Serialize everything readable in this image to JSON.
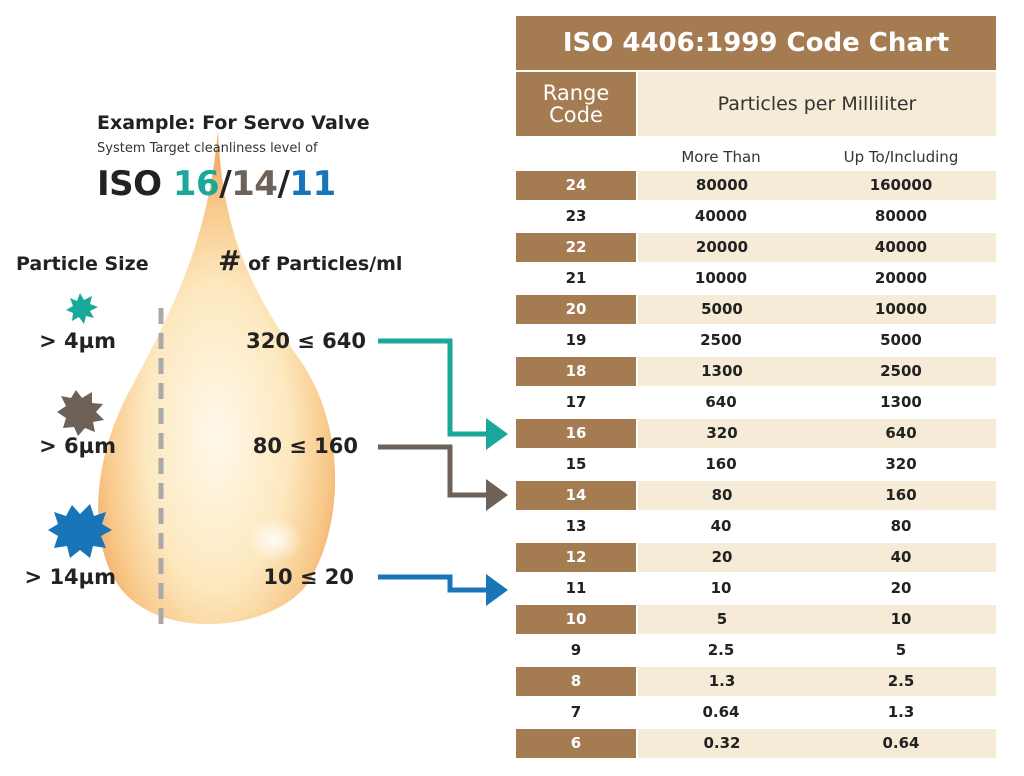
{
  "example": {
    "title": "Example: For Servo Valve",
    "subtitle": "System Target cleanliness level of",
    "iso_prefix": "ISO ",
    "code_a": "16",
    "sep1": "/",
    "code_b": "14",
    "sep2": "/",
    "code_c": "11"
  },
  "columns": {
    "particle_size": "Particle Size",
    "count_hash": "#",
    "count_rest": " of Particles/ml"
  },
  "rows": [
    {
      "size": "> 4µm",
      "count": "320 ≤ 640",
      "color": "#1aa89a",
      "target_code": "16"
    },
    {
      "size": "> 6µm",
      "count": "80 ≤ 160",
      "color": "#6e6258",
      "target_code": "14"
    },
    {
      "size": "> 14µm",
      "count": "10 ≤ 20",
      "color": "#1a74b8",
      "target_code": "11"
    }
  ],
  "colors": {
    "teal": "#1aa89a",
    "grey": "#6e6258",
    "blue": "#1a74b8",
    "table_brown": "#a57b52",
    "table_cream": "#f6ebd6",
    "drop": "#fde7b8"
  },
  "table": {
    "title": "ISO 4406:1999 Code Chart",
    "range_code_line1": "Range",
    "range_code_line2": "Code",
    "ppm": "Particles per Milliliter",
    "more_than": "More Than",
    "up_to": "Up To/Including",
    "rows": [
      {
        "code": "24",
        "more": "80000",
        "upto": "160000"
      },
      {
        "code": "23",
        "more": "40000",
        "upto": "80000"
      },
      {
        "code": "22",
        "more": "20000",
        "upto": "40000"
      },
      {
        "code": "21",
        "more": "10000",
        "upto": "20000"
      },
      {
        "code": "20",
        "more": "5000",
        "upto": "10000"
      },
      {
        "code": "19",
        "more": "2500",
        "upto": "5000"
      },
      {
        "code": "18",
        "more": "1300",
        "upto": "2500"
      },
      {
        "code": "17",
        "more": "640",
        "upto": "1300"
      },
      {
        "code": "16",
        "more": "320",
        "upto": "640"
      },
      {
        "code": "15",
        "more": "160",
        "upto": "320"
      },
      {
        "code": "14",
        "more": "80",
        "upto": "160"
      },
      {
        "code": "13",
        "more": "40",
        "upto": "80"
      },
      {
        "code": "12",
        "more": "20",
        "upto": "40"
      },
      {
        "code": "11",
        "more": "10",
        "upto": "20"
      },
      {
        "code": "10",
        "more": "5",
        "upto": "10"
      },
      {
        "code": "9",
        "more": "2.5",
        "upto": "5"
      },
      {
        "code": "8",
        "more": "1.3",
        "upto": "2.5"
      },
      {
        "code": "7",
        "more": "0.64",
        "upto": "1.3"
      },
      {
        "code": "6",
        "more": "0.32",
        "upto": "0.64"
      }
    ]
  }
}
